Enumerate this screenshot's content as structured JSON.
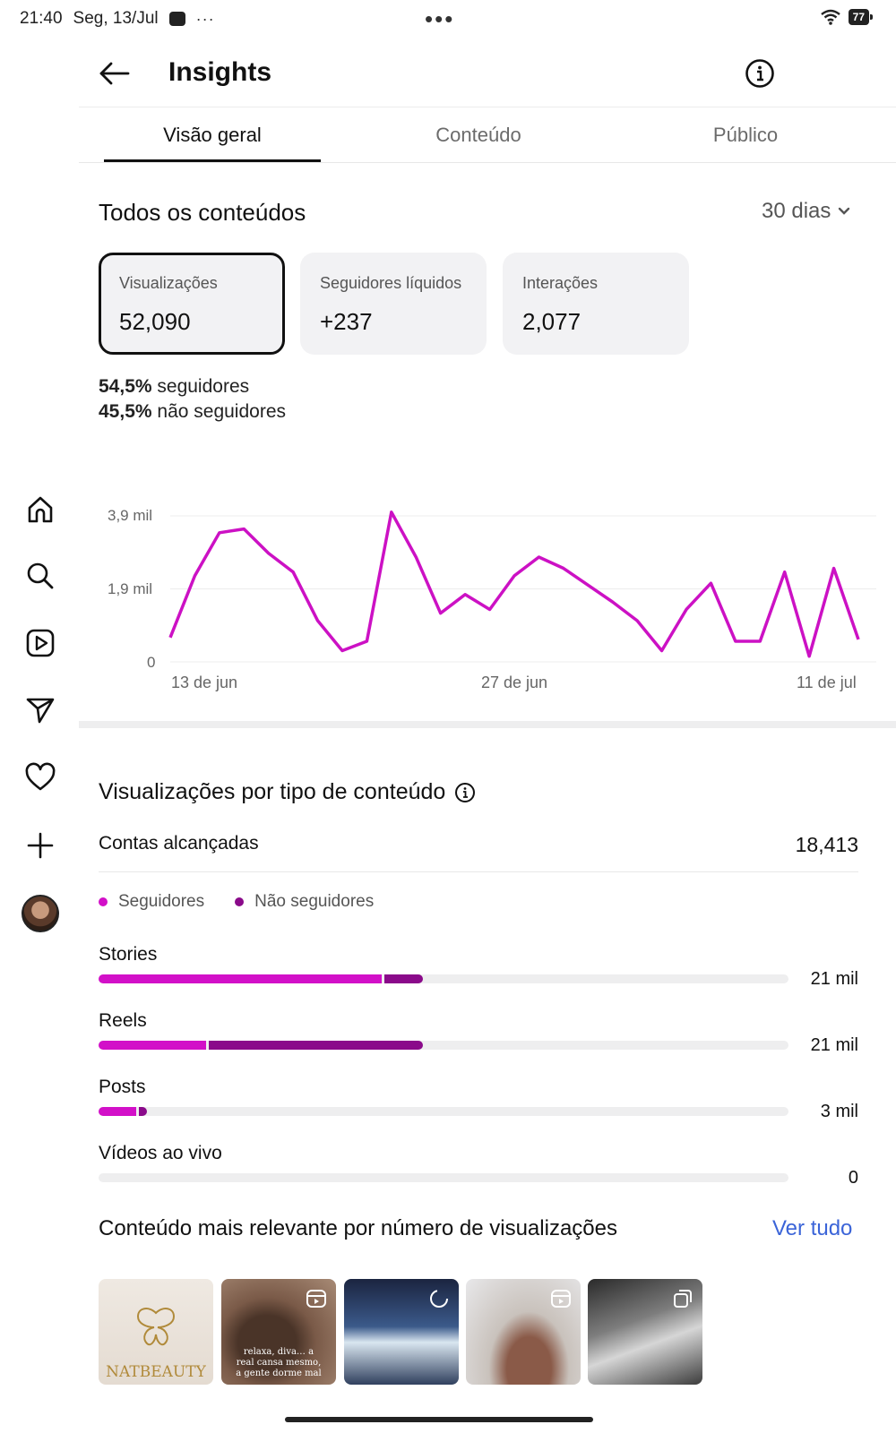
{
  "status_bar": {
    "time": "21:40",
    "date": "Seg, 13/Jul",
    "more": "···",
    "center_dots": "•••",
    "battery": "77"
  },
  "header": {
    "title": "Insights",
    "back_icon": "arrow-left-icon",
    "info_icon": "info-circle-icon"
  },
  "tabs": [
    {
      "label": "Visão geral",
      "active": true
    },
    {
      "label": "Conteúdo",
      "active": false
    },
    {
      "label": "Público",
      "active": false
    }
  ],
  "summary": {
    "title": "Todos os conteúdos",
    "period": "30 dias",
    "cards": [
      {
        "label": "Visualizações",
        "value": "52,090",
        "selected": true
      },
      {
        "label": "Seguidores líquidos",
        "value": "+237",
        "selected": false
      },
      {
        "label": "Interações",
        "value": "2,077",
        "selected": false
      }
    ],
    "followers_pct": "54,5%",
    "followers_label": "seguidores",
    "non_followers_pct": "45,5%",
    "non_followers_label": "não seguidores"
  },
  "chart_data": {
    "type": "line",
    "title": "",
    "xlabel": "",
    "ylabel": "",
    "x_tick_labels": [
      "13 de jun",
      "27 de jun",
      "11 de jul"
    ],
    "y_tick_labels": [
      "3,9 mil",
      "1,9 mil",
      "0"
    ],
    "ylim": [
      0,
      3900
    ],
    "grid": true,
    "color": "#cc11c4",
    "values": [
      650,
      2300,
      3450,
      3550,
      2900,
      2400,
      1100,
      300,
      550,
      4000,
      2800,
      1300,
      1800,
      1400,
      2300,
      2800,
      2500,
      2050,
      1600,
      1100,
      300,
      1400,
      2100,
      550,
      550,
      2400,
      150,
      2500,
      600
    ]
  },
  "content_type": {
    "title": "Visualizações por tipo de conteúdo",
    "reach_label": "Contas alcançadas",
    "reach_value": "18,413",
    "legend": [
      {
        "label": "Seguidores",
        "color": "#d210c8"
      },
      {
        "label": "Não seguidores",
        "color": "#8a0a8a"
      }
    ],
    "rows": [
      {
        "label": "Stories",
        "value": "21 mil",
        "followers_fraction": 0.41,
        "non_followers_fraction": 0.056
      },
      {
        "label": "Reels",
        "value": "21 mil",
        "followers_fraction": 0.156,
        "non_followers_fraction": 0.31
      },
      {
        "label": "Posts",
        "value": "3 mil",
        "followers_fraction": 0.054,
        "non_followers_fraction": 0.012
      },
      {
        "label": "Vídeos ao vivo",
        "value": "0",
        "followers_fraction": 0,
        "non_followers_fraction": 0
      }
    ]
  },
  "top_content": {
    "title": "Conteúdo mais relevante por número de visualizações",
    "see_all": "Ver tudo",
    "thumb_1_brand": "NATBEAUTY",
    "thumb_2_caption": "relaxa, diva… a real cansa mesmo, a gente dorme mal"
  }
}
